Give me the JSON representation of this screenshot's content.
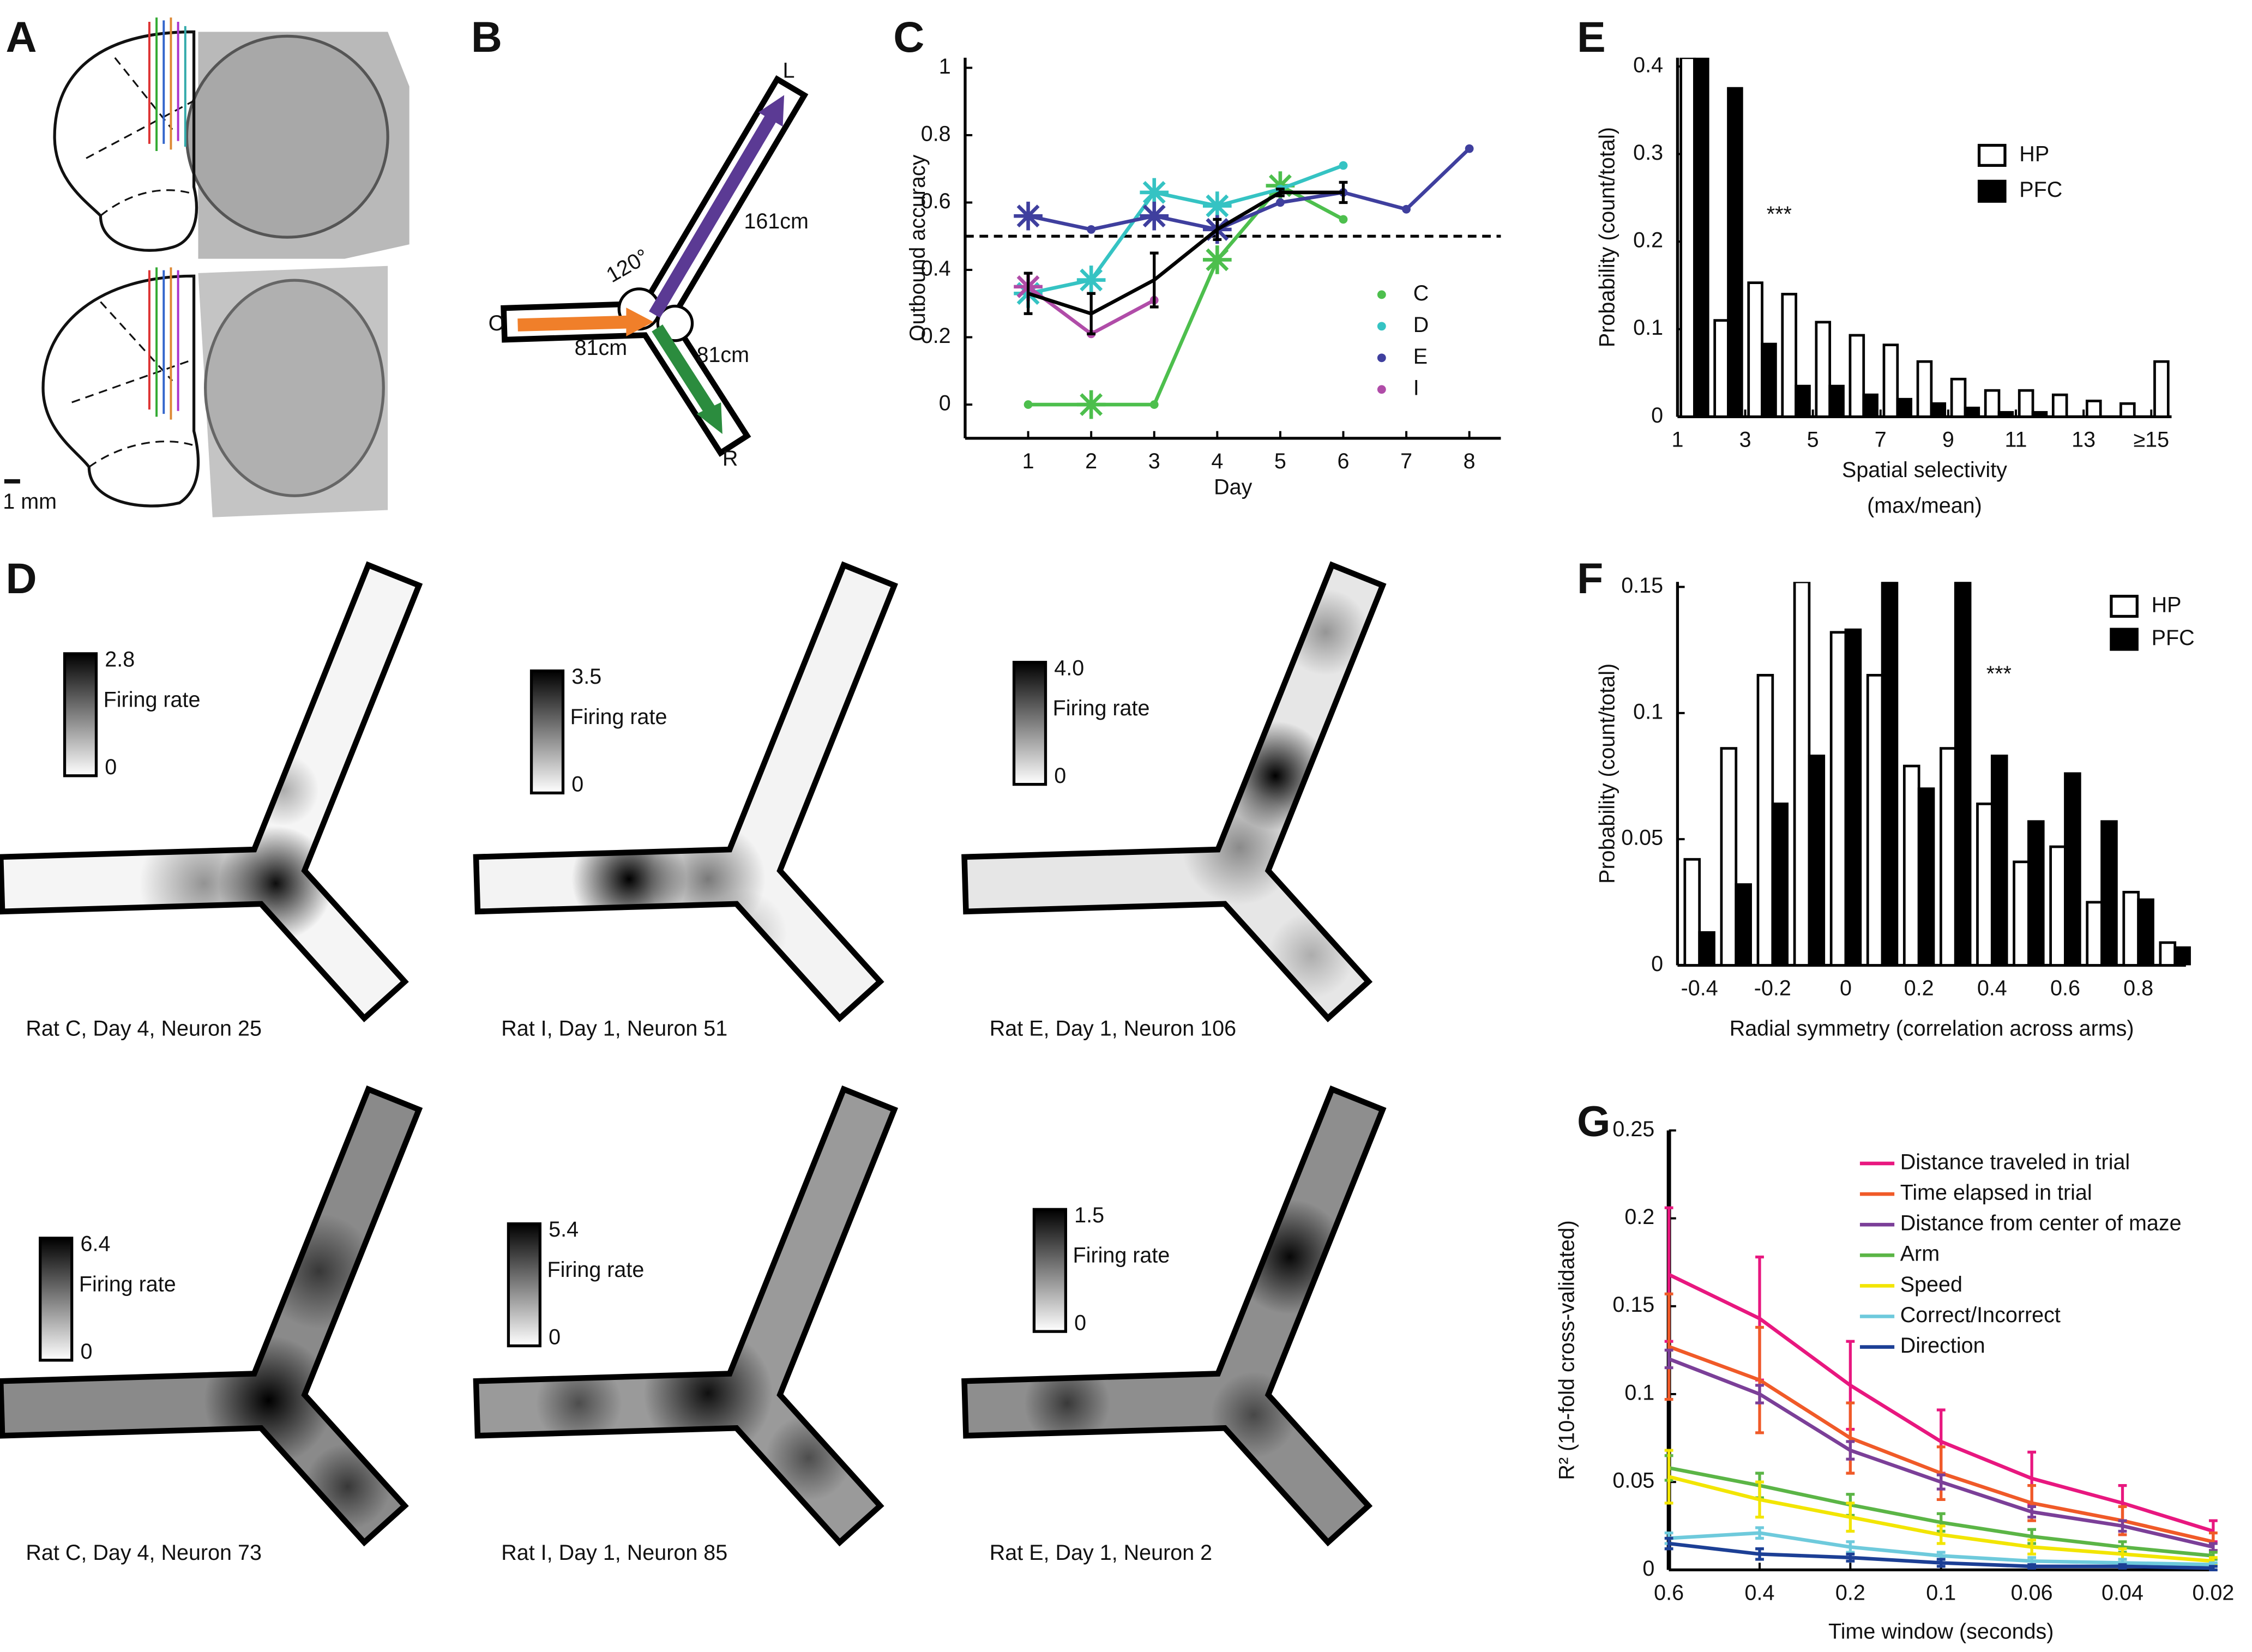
{
  "panels": [
    "A",
    "B",
    "C",
    "D",
    "E",
    "F",
    "G"
  ],
  "panel_a": {
    "scale_label": "1 mm"
  },
  "panel_b": {
    "arm_labels": [
      "L",
      "C",
      "R"
    ],
    "length_labels": [
      "161cm",
      "81cm",
      "81cm"
    ],
    "angle_label": "120°"
  },
  "panel_d": [
    {
      "max": "2.8",
      "min": "0",
      "colorbar_label": "Firing rate",
      "caption": "Rat C, Day 4, Neuron 25"
    },
    {
      "max": "3.5",
      "min": "0",
      "colorbar_label": "Firing rate",
      "caption": "Rat I, Day 1, Neuron 51"
    },
    {
      "max": "4.0",
      "min": "0",
      "colorbar_label": "Firing rate",
      "caption": "Rat E, Day 1, Neuron 106"
    },
    {
      "max": "6.4",
      "min": "0",
      "colorbar_label": "Firing rate",
      "caption": "Rat C, Day 4, Neuron 73"
    },
    {
      "max": "5.4",
      "min": "0",
      "colorbar_label": "Firing rate",
      "caption": "Rat I, Day 1, Neuron 85"
    },
    {
      "max": "1.5",
      "min": "0",
      "colorbar_label": "Firing rate",
      "caption": "Rat E, Day 1, Neuron 2"
    }
  ],
  "chart_data": [
    {
      "type": "line",
      "xlabel": "Day",
      "ylabel": "Outbound accuracy",
      "x": [
        1,
        2,
        3,
        4,
        5,
        6,
        7,
        8
      ],
      "xlim": [
        0,
        8.5
      ],
      "xticks": [
        1,
        2,
        3,
        4,
        5,
        6,
        7,
        8
      ],
      "ylim": [
        -0.1,
        1.03
      ],
      "yticks": [
        0,
        0.2,
        0.4,
        0.6,
        0.8,
        1
      ],
      "hline": 0.5,
      "legend": "lower right",
      "series": [
        {
          "name": "C",
          "color": "#4dbf4d",
          "values": [
            0,
            0,
            0,
            0.43,
            0.65,
            0.55,
            null,
            null
          ],
          "markers": [
            "dot",
            "star",
            "dot",
            "star",
            "star",
            "dot",
            null,
            null
          ]
        },
        {
          "name": "D",
          "color": "#35c3c3",
          "values": [
            0.33,
            0.37,
            0.63,
            0.59,
            0.64,
            0.71,
            null,
            null
          ],
          "markers": [
            "star",
            "star",
            "star",
            "star",
            "dot",
            "dot",
            null,
            null
          ]
        },
        {
          "name": "E",
          "color": "#3f3f9e",
          "values": [
            0.56,
            0.52,
            0.56,
            0.52,
            0.6,
            0.63,
            0.58,
            0.76
          ],
          "markers": [
            "star",
            "dot",
            "star",
            "star",
            "dot",
            "dot",
            "dot",
            "dot"
          ]
        },
        {
          "name": "I",
          "color": "#b04ca8",
          "values": [
            0.35,
            0.21,
            0.31,
            null,
            null,
            null,
            null,
            null
          ],
          "markers": [
            "star",
            "dot",
            "dot",
            null,
            null,
            null,
            null,
            null
          ]
        }
      ],
      "mean": {
        "color": "#000000",
        "values": [
          0.33,
          0.27,
          0.37,
          0.52,
          0.63,
          0.63,
          null,
          null
        ],
        "errors": [
          0.06,
          0.06,
          0.08,
          0.03,
          0.01,
          0.03,
          null,
          null
        ]
      }
    },
    {
      "type": "histogram",
      "xlabel": [
        "Spatial selectivity",
        "(max/mean)"
      ],
      "ylabel": "Probability (count/total)",
      "annotation": "***",
      "bins": [
        1,
        2,
        3,
        4,
        5,
        6,
        7,
        8,
        9,
        10,
        11,
        12,
        13,
        14,
        15,
        16
      ],
      "xlim": [
        1,
        15.6
      ],
      "xticks": [
        1,
        3,
        5,
        7,
        9,
        11,
        13,
        {
          "value": 15,
          "label": "≥15"
        }
      ],
      "ylim": [
        0,
        0.41
      ],
      "yticks": [
        0,
        0.1,
        0.2,
        0.3,
        0.4
      ],
      "legend": "upper right",
      "series": [
        {
          "name": "HP",
          "color": "#ffffff",
          "edgecolor": "#000000",
          "values": [
            0.41,
            0.11,
            0.153,
            0.14,
            0.108,
            0.093,
            0.082,
            0.063,
            0.043,
            0.03,
            0.03,
            0.025,
            0.018,
            0.015,
            0.063
          ]
        },
        {
          "name": "PFC",
          "color": "#000000",
          "edgecolor": "#000000",
          "values": [
            0.41,
            0.375,
            0.083,
            0.035,
            0.035,
            0.025,
            0.02,
            0.015,
            0.01,
            0.005,
            0.005,
            0,
            0,
            0,
            0
          ]
        }
      ]
    },
    {
      "type": "histogram",
      "xlabel": "Radial symmetry (correlation across arms)",
      "ylabel": "Probability (count/total)",
      "annotation": "***",
      "bins": [
        -0.45,
        -0.35,
        -0.25,
        -0.15,
        -0.05,
        0.05,
        0.15,
        0.25,
        0.35,
        0.45,
        0.55,
        0.65,
        0.75,
        0.85,
        0.95
      ],
      "xlim": [
        -0.46,
        0.93
      ],
      "xticks": [
        -0.4,
        -0.2,
        0,
        0.2,
        0.4,
        0.6,
        0.8
      ],
      "ylim": [
        0,
        0.152
      ],
      "yticks": [
        0,
        0.05,
        0.1,
        0.15
      ],
      "legend": "upper right",
      "series": [
        {
          "name": "HP",
          "color": "#ffffff",
          "edgecolor": "#000000",
          "values": [
            0.042,
            0.086,
            0.115,
            0.152,
            0.132,
            0.115,
            0.079,
            0.086,
            0.064,
            0.041,
            0.047,
            0.025,
            0.029,
            0.009
          ]
        },
        {
          "name": "PFC",
          "color": "#000000",
          "edgecolor": "#000000",
          "values": [
            0.013,
            0.032,
            0.064,
            0.083,
            0.133,
            0.152,
            0.07,
            0.152,
            0.083,
            0.057,
            0.076,
            0.057,
            0.026,
            0.007
          ]
        }
      ]
    },
    {
      "type": "line",
      "xlabel": "Time window (seconds)",
      "ylabel": "R² (10-fold cross-validated)",
      "categories": [
        "0.6",
        "0.4",
        "0.2",
        "0.1",
        "0.06",
        "0.04",
        "0.02"
      ],
      "ylim": [
        0,
        0.25
      ],
      "yticks": [
        0,
        0.05,
        0.1,
        0.15,
        0.2,
        0.25
      ],
      "legend": "upper right",
      "series": [
        {
          "name": "Distance traveled in trial",
          "color": "#e8177f",
          "values": [
            0.168,
            0.143,
            0.105,
            0.073,
            0.052,
            0.038,
            0.022
          ],
          "errors": [
            0.038,
            0.035,
            0.025,
            0.018,
            0.015,
            0.01,
            0.006
          ]
        },
        {
          "name": "Time elapsed in trial",
          "color": "#f05a28",
          "values": [
            0.127,
            0.108,
            0.075,
            0.055,
            0.038,
            0.028,
            0.016
          ],
          "errors": [
            0.03,
            0.03,
            0.02,
            0.015,
            0.01,
            0.008,
            0.005
          ]
        },
        {
          "name": "Distance from center of maze",
          "color": "#7b3f98",
          "values": [
            0.12,
            0.1,
            0.068,
            0.05,
            0.033,
            0.025,
            0.013
          ],
          "errors": [
            0.005,
            0.005,
            0.005,
            0.004,
            0.003,
            0.003,
            0.002
          ]
        },
        {
          "name": "Arm",
          "color": "#5bb546",
          "values": [
            0.058,
            0.048,
            0.037,
            0.027,
            0.019,
            0.013,
            0.008
          ],
          "errors": [
            0.007,
            0.007,
            0.006,
            0.005,
            0.004,
            0.003,
            0.002
          ]
        },
        {
          "name": "Speed",
          "color": "#f2e500",
          "values": [
            0.053,
            0.04,
            0.03,
            0.02,
            0.013,
            0.009,
            0.005
          ],
          "errors": [
            0.015,
            0.01,
            0.008,
            0.005,
            0.004,
            0.003,
            0.002
          ]
        },
        {
          "name": "Correct/Incorrect",
          "color": "#6ecadc",
          "values": [
            0.018,
            0.021,
            0.013,
            0.008,
            0.005,
            0.004,
            0.003
          ],
          "errors": [
            0.003,
            0.003,
            0.003,
            0.002,
            0.002,
            0.002,
            0.001
          ]
        },
        {
          "name": "Direction",
          "color": "#1c3f95",
          "values": [
            0.015,
            0.009,
            0.007,
            0.004,
            0.002,
            0.002,
            0.001
          ],
          "errors": [
            0.003,
            0.003,
            0.002,
            0.002,
            0.001,
            0.001,
            0.001
          ]
        }
      ]
    }
  ]
}
